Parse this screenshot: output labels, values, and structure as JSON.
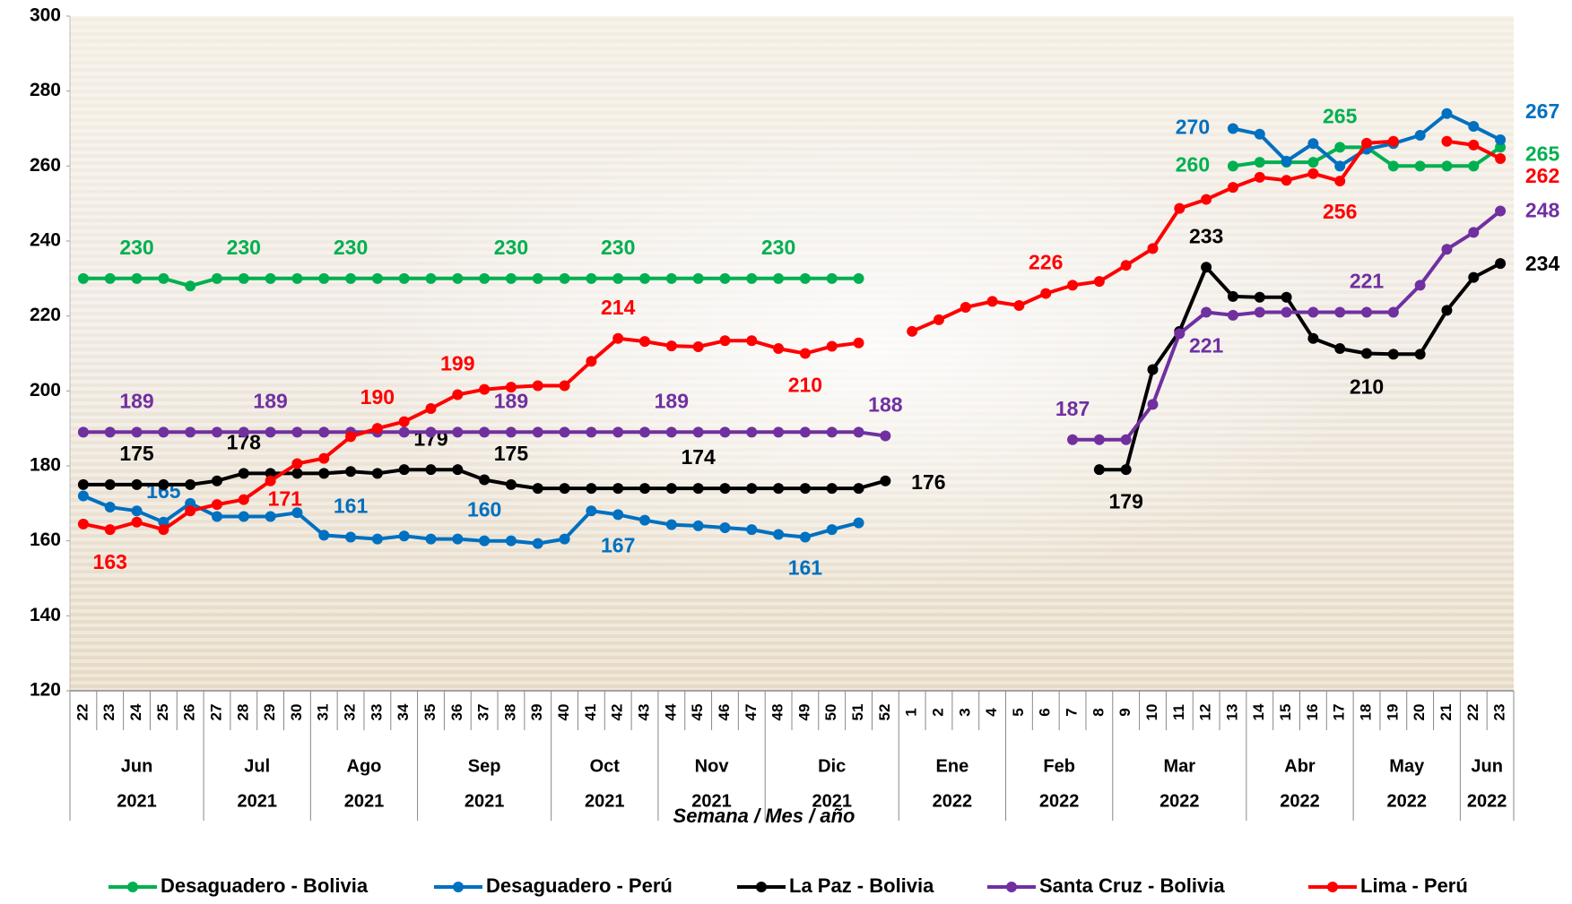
{
  "chart_data": {
    "type": "line",
    "xlabel": "Semana / Mes / año",
    "ylim": [
      120,
      300
    ],
    "yticks": [
      120,
      140,
      160,
      180,
      200,
      220,
      240,
      260,
      280,
      300
    ],
    "category_groups": [
      {
        "month": "Jun",
        "year": "2021",
        "weeks": [
          "22",
          "23",
          "24",
          "25",
          "26"
        ]
      },
      {
        "month": "Jul",
        "year": "2021",
        "weeks": [
          "27",
          "28",
          "29",
          "30"
        ]
      },
      {
        "month": "Ago",
        "year": "2021",
        "weeks": [
          "31",
          "32",
          "33",
          "34"
        ]
      },
      {
        "month": "Sep",
        "year": "2021",
        "weeks": [
          "35",
          "36",
          "37",
          "38",
          "39"
        ]
      },
      {
        "month": "Oct",
        "year": "2021",
        "weeks": [
          "40",
          "41",
          "42",
          "43"
        ]
      },
      {
        "month": "Nov",
        "year": "2021",
        "weeks": [
          "44",
          "45",
          "46",
          "47"
        ]
      },
      {
        "month": "Dic",
        "year": "2021",
        "weeks": [
          "48",
          "49",
          "50",
          "51",
          "52"
        ]
      },
      {
        "month": "Ene",
        "year": "2022",
        "weeks": [
          "1",
          "2",
          "3",
          "4"
        ]
      },
      {
        "month": "Feb",
        "year": "2022",
        "weeks": [
          "5",
          "6",
          "7",
          "8"
        ]
      },
      {
        "month": "Mar",
        "year": "2022",
        "weeks": [
          "9",
          "10",
          "11",
          "12",
          "13"
        ]
      },
      {
        "month": "Abr",
        "year": "2022",
        "weeks": [
          "14",
          "15",
          "16",
          "17"
        ]
      },
      {
        "month": "May",
        "year": "2022",
        "weeks": [
          "18",
          "19",
          "20",
          "21"
        ]
      },
      {
        "month": "Jun",
        "year": "2022",
        "weeks": [
          "22",
          "23"
        ]
      }
    ],
    "series": [
      {
        "name": "Desaguadero - Bolivia",
        "color": "#00b050",
        "values": [
          230,
          230,
          230,
          230,
          228,
          230,
          230,
          230,
          230,
          230,
          230,
          230,
          230,
          230,
          230,
          230,
          230,
          230,
          230,
          230,
          230,
          230,
          230,
          230,
          230,
          230,
          230,
          230,
          230,
          230,
          null,
          null,
          null,
          null,
          null,
          null,
          null,
          null,
          null,
          null,
          null,
          null,
          null,
          260,
          261,
          261,
          261,
          265,
          265,
          260,
          260,
          260,
          260,
          265
        ],
        "value_labels": [
          null,
          null,
          "230",
          null,
          null,
          null,
          "230",
          null,
          null,
          null,
          "230",
          null,
          null,
          null,
          null,
          null,
          "230",
          null,
          null,
          null,
          "230",
          null,
          null,
          null,
          null,
          null,
          "230",
          null,
          null,
          null,
          null,
          null,
          null,
          null,
          null,
          null,
          null,
          null,
          null,
          null,
          null,
          null,
          null,
          "260",
          null,
          null,
          null,
          "265",
          null,
          null,
          null,
          null,
          null,
          "265"
        ]
      },
      {
        "name": "Desaguadero - Perú",
        "color": "#0070c0",
        "values": [
          172,
          169,
          168,
          165,
          170,
          166.5,
          166.5,
          166.5,
          167.5,
          161.5,
          161,
          160.5,
          161.3,
          160.5,
          160.5,
          160,
          160,
          159.3,
          160.5,
          168,
          167,
          165.5,
          164.3,
          164,
          163.5,
          163,
          161.7,
          161,
          163,
          164.8,
          null,
          null,
          null,
          null,
          null,
          null,
          null,
          null,
          null,
          null,
          null,
          null,
          null,
          270,
          268.5,
          261.3,
          266,
          260,
          264.5,
          266,
          268.2,
          274,
          270.6,
          267
        ],
        "value_labels": [
          null,
          null,
          null,
          "165",
          null,
          null,
          null,
          null,
          null,
          null,
          "161",
          null,
          null,
          null,
          null,
          "160",
          null,
          null,
          null,
          null,
          "167",
          null,
          null,
          null,
          null,
          null,
          null,
          "161",
          null,
          null,
          null,
          null,
          null,
          null,
          null,
          null,
          null,
          null,
          null,
          null,
          null,
          null,
          null,
          "270",
          null,
          null,
          null,
          null,
          null,
          null,
          null,
          null,
          null,
          "267"
        ]
      },
      {
        "name": "La Paz - Bolivia",
        "color": "#000000",
        "values": [
          175,
          175,
          175,
          175,
          175,
          176,
          178,
          178,
          178,
          178,
          178.5,
          178,
          179,
          179,
          179,
          176.3,
          175,
          174,
          174,
          174,
          174,
          174,
          174,
          174,
          174,
          174,
          174,
          174,
          174,
          174,
          176,
          null,
          null,
          null,
          null,
          null,
          null,
          null,
          179,
          179,
          205.7,
          215.9,
          233,
          225.2,
          225,
          225,
          214,
          211.3,
          210,
          209.8,
          209.8,
          221.5,
          230.3,
          234
        ],
        "value_labels": [
          null,
          null,
          "175",
          null,
          null,
          null,
          "178",
          null,
          null,
          null,
          null,
          null,
          null,
          "179",
          null,
          null,
          "175",
          null,
          null,
          null,
          null,
          null,
          null,
          "174",
          null,
          null,
          null,
          null,
          null,
          null,
          "176",
          null,
          null,
          null,
          null,
          null,
          null,
          null,
          null,
          "179",
          null,
          null,
          "233",
          null,
          null,
          null,
          null,
          null,
          "210",
          null,
          null,
          null,
          null,
          "234"
        ]
      },
      {
        "name": "Santa Cruz - Bolivia",
        "color": "#7030a0",
        "values": [
          189,
          189,
          189,
          189,
          189,
          189,
          189,
          189,
          189,
          189,
          189,
          189,
          189,
          189,
          189,
          189,
          189,
          189,
          189,
          189,
          189,
          189,
          189,
          189,
          189,
          189,
          189,
          189,
          189,
          189,
          188,
          null,
          null,
          null,
          null,
          null,
          null,
          187,
          187,
          187,
          196.4,
          215.3,
          221,
          220.2,
          221,
          221,
          221,
          221,
          221,
          221,
          228.2,
          237.8,
          242.3,
          248
        ],
        "value_labels": [
          null,
          null,
          "189",
          null,
          null,
          null,
          null,
          "189",
          null,
          null,
          null,
          null,
          null,
          null,
          null,
          null,
          "189",
          null,
          null,
          null,
          null,
          null,
          "189",
          null,
          null,
          null,
          null,
          null,
          null,
          null,
          "188",
          null,
          null,
          null,
          null,
          null,
          null,
          "187",
          null,
          null,
          null,
          null,
          "221",
          null,
          null,
          null,
          null,
          null,
          "221",
          null,
          null,
          null,
          null,
          "248"
        ]
      },
      {
        "name": "Lima - Perú",
        "color": "#ff0000",
        "values": [
          164.5,
          163,
          165,
          163,
          168,
          169.7,
          171,
          176,
          180.6,
          182,
          187.8,
          190,
          191.8,
          195.3,
          199,
          200.4,
          201,
          201.4,
          201.4,
          207.9,
          214,
          213.2,
          212,
          211.8,
          213.4,
          213.4,
          211.3,
          210,
          211.9,
          212.8,
          null,
          215.9,
          219,
          222.3,
          223.9,
          222.8,
          226,
          228.2,
          229.2,
          233.5,
          238,
          248.7,
          251.1,
          254.3,
          257,
          256.2,
          258,
          256,
          266.1,
          266.6,
          null,
          266.6,
          265.6,
          262
        ],
        "value_labels": [
          null,
          "163",
          null,
          null,
          null,
          null,
          "171",
          null,
          null,
          null,
          null,
          "190",
          null,
          null,
          "199",
          null,
          null,
          null,
          null,
          null,
          "214",
          null,
          null,
          null,
          null,
          null,
          null,
          "210",
          null,
          null,
          null,
          null,
          null,
          null,
          null,
          null,
          "226",
          null,
          null,
          null,
          null,
          null,
          null,
          null,
          null,
          null,
          null,
          "256",
          null,
          null,
          null,
          null,
          null,
          "262"
        ]
      }
    ]
  }
}
